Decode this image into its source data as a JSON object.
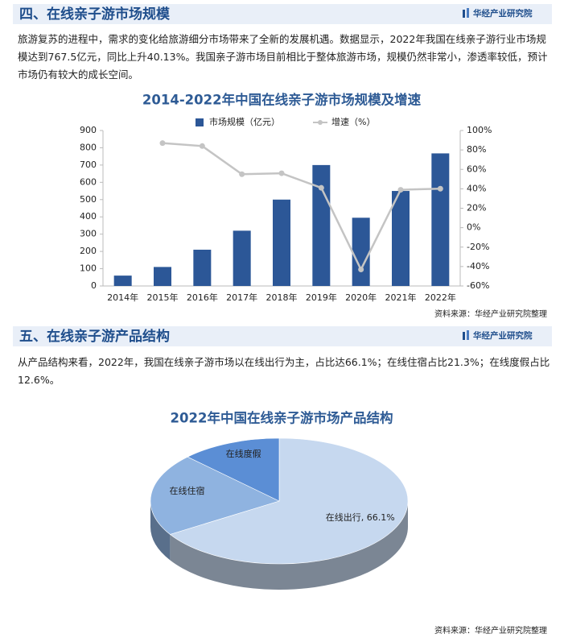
{
  "sections": [
    {
      "heading": "四、在线亲子游市场规模",
      "brand": "华经产业研究院",
      "text": "旅游复苏的进程中，需求的变化给旅游细分市场带来了全新的发展机遇。数据显示，2022年我国在线亲子游行业市场规模达到767.5亿元，同比上升40.13%。我国亲子游市场目前相比于整体旅游市场，规模仍然非常小，渗透率较低，预计市场仍有较大的成长空间。",
      "source": "资料来源：华经产业研究院整理"
    },
    {
      "heading": "五、在线亲子游产品结构",
      "brand": "华经产业研究院",
      "text": "从产品结构来看，2022年，我国在线亲子游市场以在线出行为主，占比达66.1%；在线住宿占比21.3%；在线度假占比12.6%。",
      "source": "资料来源：华经产业研究院整理"
    }
  ],
  "chart_data": [
    {
      "type": "bar",
      "title": "2014-2022年中国在线亲子游市场规模及增速",
      "categories": [
        "2014年",
        "2015年",
        "2016年",
        "2017年",
        "2018年",
        "2019年",
        "2020年",
        "2021年",
        "2022年"
      ],
      "series": [
        {
          "name": "市场规模（亿元）",
          "type": "bar",
          "color": "#2c5797",
          "values": [
            60,
            110,
            210,
            320,
            500,
            700,
            395,
            550,
            767.5
          ]
        },
        {
          "name": "增速（%）",
          "type": "line",
          "axis": "y2",
          "color": "#c4c4c4",
          "values": [
            null,
            87,
            84,
            55,
            56,
            41,
            -43,
            39,
            40.13
          ]
        }
      ],
      "ylim": [
        0,
        900
      ],
      "yticks": [
        0,
        100,
        200,
        300,
        400,
        500,
        600,
        700,
        800,
        900
      ],
      "y2lim": [
        -60,
        100
      ],
      "y2ticks": [
        {
          "value": -60,
          "label": "-60%"
        },
        {
          "value": -40,
          "label": "-40%"
        },
        {
          "value": -20,
          "label": "-20%"
        },
        {
          "value": 0,
          "label": "0%"
        },
        {
          "value": 20,
          "label": "20%"
        },
        {
          "value": 40,
          "label": "40%"
        },
        {
          "value": 60,
          "label": "60%"
        },
        {
          "value": 80,
          "label": "80%"
        },
        {
          "value": 100,
          "label": "100%"
        }
      ],
      "grid": false,
      "legend": "top"
    },
    {
      "type": "pie",
      "title": "2022年中国在线亲子游市场产品结构",
      "labels": [
        "在线出行, 66.1%",
        "在线住宿",
        "在线度假"
      ],
      "values": [
        66.1,
        21.3,
        12.6
      ],
      "colors": [
        "#c6d8ef",
        "#8fb3e0",
        "#5b8ed5"
      ]
    }
  ]
}
